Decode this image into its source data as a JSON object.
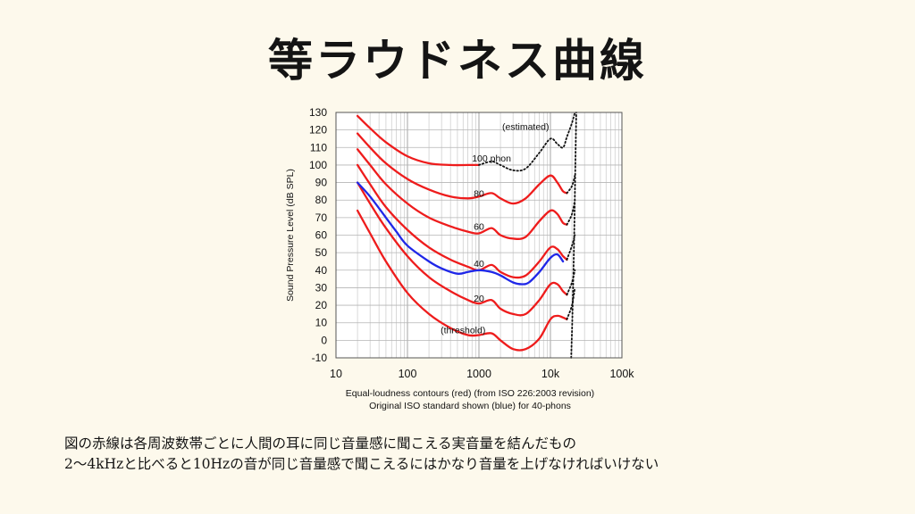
{
  "page": {
    "title": "等ラウドネス曲線"
  },
  "captions": [
    "図の赤線は各周波数帯ごとに人間の耳に同じ音量感に聞こえる実音量を結んだもの",
    "2～4kHzと比べると10Hzの音が同じ音量感で聞こえるにはかなり音量を上げなければいけない"
  ],
  "chart_data": {
    "type": "line",
    "xscale": "log",
    "xlim": [
      10,
      100000
    ],
    "ylim": [
      -10,
      130
    ],
    "xticks": [
      10,
      100,
      1000,
      10000,
      100000
    ],
    "xtick_labels": [
      "10",
      "100",
      "1000",
      "10k",
      "100k"
    ],
    "yticks": [
      -10,
      0,
      10,
      20,
      30,
      40,
      50,
      60,
      70,
      80,
      90,
      100,
      110,
      120,
      130
    ],
    "ylabel": "Sound Pressure Level (dB SPL)",
    "xlabel_lines": [
      "Equal-loudness contours (red) (from ISO 226:2003 revision)",
      "Original ISO standard shown (blue) for 40-phons"
    ],
    "grid": true,
    "colors": {
      "red": "#ee1c1c",
      "blue": "#1f27e8",
      "dotted": "#111111"
    },
    "annotations": [
      {
        "text": "(estimated)",
        "x": 4500,
        "y": 122
      },
      {
        "text": "100 phon",
        "x": 1500,
        "y": 104
      },
      {
        "text": "80",
        "x": 1000,
        "y": 84
      },
      {
        "text": "60",
        "x": 1000,
        "y": 65
      },
      {
        "text": "40",
        "x": 1000,
        "y": 44
      },
      {
        "text": "20",
        "x": 1000,
        "y": 24
      },
      {
        "text": "(threshold)",
        "x": 600,
        "y": 6
      }
    ],
    "series": [
      {
        "name": "100 phon",
        "color": "red",
        "x": [
          20,
          30,
          50,
          100,
          200,
          400,
          700,
          1000
        ],
        "y": [
          128,
          121,
          113,
          105,
          101,
          100,
          100,
          100
        ],
        "estimated": {
          "x": [
            1000,
            1500,
            2000,
            3000,
            4500,
            7000,
            10000,
            12500,
            15000,
            17000,
            20000,
            22000
          ],
          "y": [
            100,
            102,
            100,
            97,
            98,
            107,
            115,
            112,
            110,
            116,
            124,
            130
          ]
        }
      },
      {
        "name": "80 phon",
        "color": "red",
        "x": [
          20,
          30,
          50,
          100,
          200,
          400,
          700,
          1000,
          1500,
          2000,
          3000,
          4500,
          7000,
          10000,
          12500,
          15000,
          17000
        ],
        "y": [
          118,
          110,
          101,
          92,
          86,
          82,
          81,
          82,
          84,
          81,
          78,
          81,
          89,
          94,
          90,
          85,
          84
        ],
        "estimated": {
          "x": [
            17000,
            20000,
            22000
          ],
          "y": [
            84,
            88,
            94
          ]
        }
      },
      {
        "name": "60 phon",
        "color": "red",
        "x": [
          20,
          30,
          50,
          100,
          200,
          400,
          700,
          1000,
          1500,
          2000,
          3000,
          4500,
          7000,
          10000,
          12500,
          15000,
          17000
        ],
        "y": [
          109,
          100,
          89,
          78,
          70,
          65,
          62,
          61,
          64,
          60,
          58,
          59,
          68,
          74,
          72,
          67,
          66
        ],
        "estimated": {
          "x": [
            17000,
            20000,
            22000
          ],
          "y": [
            66,
            72,
            80
          ]
        }
      },
      {
        "name": "40 phon",
        "color": "red",
        "x": [
          20,
          30,
          50,
          100,
          200,
          400,
          700,
          1000,
          1500,
          2000,
          3000,
          4500,
          7000,
          10000,
          12500,
          15000,
          17000
        ],
        "y": [
          100,
          89,
          76,
          63,
          53,
          46,
          42,
          40,
          43,
          39,
          36,
          37,
          45,
          53,
          52,
          48,
          46
        ],
        "estimated": {
          "x": [
            17000,
            20000,
            22000
          ],
          "y": [
            46,
            54,
            60
          ]
        }
      },
      {
        "name": "20 phon",
        "color": "red",
        "x": [
          20,
          30,
          50,
          100,
          200,
          400,
          700,
          1000,
          1500,
          2000,
          3000,
          4500,
          7000,
          10000,
          12500,
          15000,
          17000
        ],
        "y": [
          90,
          78,
          64,
          48,
          36,
          28,
          23,
          21,
          23,
          18,
          15,
          15,
          23,
          32,
          32,
          28,
          26
        ],
        "estimated": {
          "x": [
            17000,
            20000,
            22000
          ],
          "y": [
            26,
            33,
            40
          ]
        }
      },
      {
        "name": "threshold",
        "color": "red",
        "x": [
          20,
          30,
          50,
          100,
          200,
          400,
          700,
          1000,
          1500,
          2000,
          3000,
          4500,
          7000,
          10000,
          12500,
          15000,
          17000
        ],
        "y": [
          74,
          61,
          45,
          27,
          15,
          7,
          3,
          3,
          4,
          0,
          -5,
          -5,
          1,
          12,
          14,
          13,
          12
        ],
        "estimated": {
          "x": [
            17000,
            20000,
            22000
          ],
          "y": [
            12,
            20,
            30
          ]
        }
      },
      {
        "name": "original ISO 40-phon",
        "color": "blue",
        "x": [
          20,
          30,
          50,
          70,
          100,
          200,
          300,
          500,
          700,
          1000,
          1500,
          2000,
          3000,
          4000,
          5000,
          7000,
          10000,
          12500,
          15000
        ],
        "y": [
          90,
          82,
          70,
          62,
          54,
          45,
          41,
          38,
          39,
          40,
          39,
          37,
          33,
          32,
          33,
          39,
          47,
          49,
          45
        ]
      }
    ],
    "cutoff": {
      "x": [
        19500,
        20500,
        21500,
        22300,
        23000
      ],
      "y": [
        -10,
        20,
        60,
        100,
        130
      ]
    }
  }
}
